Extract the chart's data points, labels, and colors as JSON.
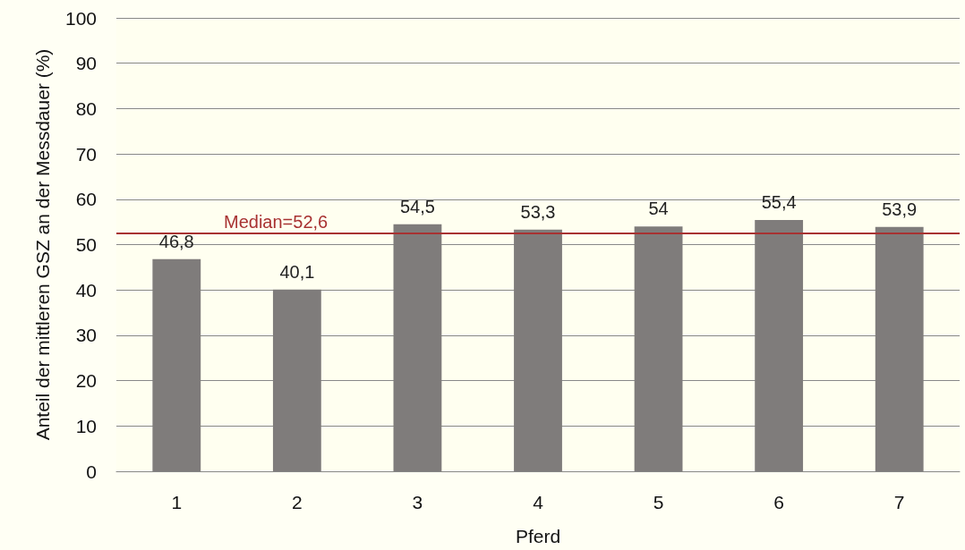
{
  "chart_data": {
    "type": "bar",
    "xlabel": "Pferd",
    "ylabel": "Anteil der mittleren GSZ an der Messdauer (%)",
    "categories": [
      "1",
      "2",
      "3",
      "4",
      "5",
      "6",
      "7"
    ],
    "values": [
      46.8,
      40.1,
      54.5,
      53.3,
      54,
      55.4,
      53.9
    ],
    "value_labels": [
      "46,8",
      "40,1",
      "54,5",
      "53,3",
      "54",
      "55,4",
      "53,9"
    ],
    "color": "#7f7c7b",
    "ylim": [
      0,
      100
    ],
    "yticks": [
      0,
      10,
      20,
      30,
      40,
      50,
      60,
      70,
      80,
      90,
      100
    ],
    "grid": "y",
    "ref_lines": [
      {
        "axis": "y",
        "value": 52.6,
        "label": "Median=52,6",
        "color": "#a83232"
      }
    ]
  }
}
